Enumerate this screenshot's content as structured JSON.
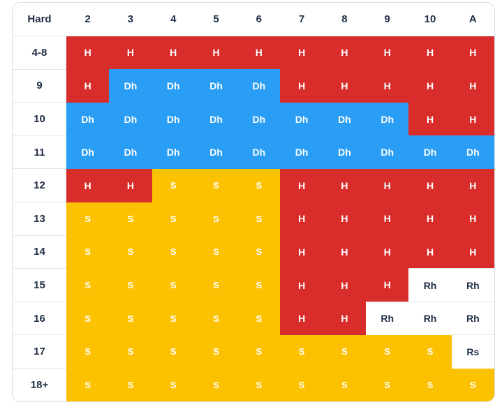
{
  "chart_data": {
    "type": "table",
    "corner_label": "Hard",
    "columns": [
      "2",
      "3",
      "4",
      "5",
      "6",
      "7",
      "8",
      "9",
      "10",
      "A"
    ],
    "rows": [
      {
        "label": "4-8",
        "actions": [
          "H",
          "H",
          "H",
          "H",
          "H",
          "H",
          "H",
          "H",
          "H",
          "H"
        ]
      },
      {
        "label": "9",
        "actions": [
          "H",
          "Dh",
          "Dh",
          "Dh",
          "Dh",
          "H",
          "H",
          "H",
          "H",
          "H"
        ]
      },
      {
        "label": "10",
        "actions": [
          "Dh",
          "Dh",
          "Dh",
          "Dh",
          "Dh",
          "Dh",
          "Dh",
          "Dh",
          "H",
          "H"
        ]
      },
      {
        "label": "11",
        "actions": [
          "Dh",
          "Dh",
          "Dh",
          "Dh",
          "Dh",
          "Dh",
          "Dh",
          "Dh",
          "Dh",
          "Dh"
        ]
      },
      {
        "label": "12",
        "actions": [
          "H",
          "H",
          "S",
          "S",
          "S",
          "H",
          "H",
          "H",
          "H",
          "H"
        ]
      },
      {
        "label": "13",
        "actions": [
          "S",
          "S",
          "S",
          "S",
          "S",
          "H",
          "H",
          "H",
          "H",
          "H"
        ]
      },
      {
        "label": "14",
        "actions": [
          "S",
          "S",
          "S",
          "S",
          "S",
          "H",
          "H",
          "H",
          "H",
          "H"
        ]
      },
      {
        "label": "15",
        "actions": [
          "S",
          "S",
          "S",
          "S",
          "S",
          "H",
          "H",
          "H",
          "Rh",
          "Rh"
        ]
      },
      {
        "label": "16",
        "actions": [
          "S",
          "S",
          "S",
          "S",
          "S",
          "H",
          "H",
          "Rh",
          "Rh",
          "Rh"
        ]
      },
      {
        "label": "17",
        "actions": [
          "S",
          "S",
          "S",
          "S",
          "S",
          "S",
          "S",
          "S",
          "S",
          "Rs"
        ]
      },
      {
        "label": "18+",
        "actions": [
          "S",
          "S",
          "S",
          "S",
          "S",
          "S",
          "S",
          "S",
          "S",
          "S"
        ]
      }
    ],
    "action_colors": {
      "H": "#d92d2c",
      "Dh": "#2a9ef4",
      "S": "#fcc100",
      "Rh": "#ffffff",
      "Rs": "#ffffff"
    }
  }
}
